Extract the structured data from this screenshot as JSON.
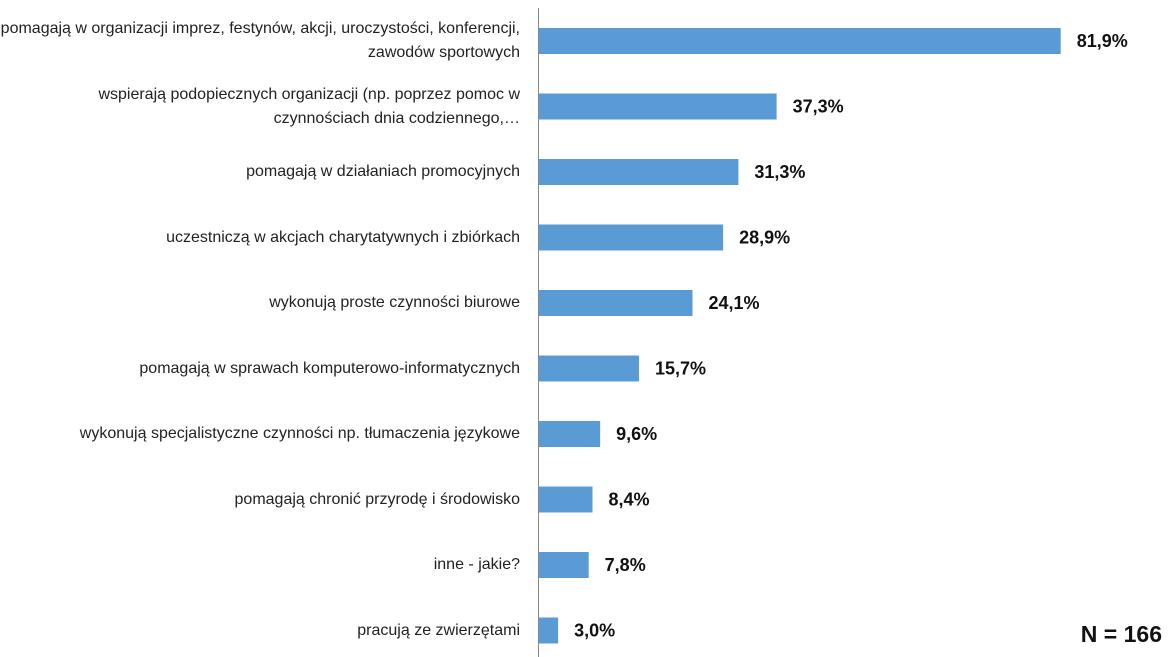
{
  "chart_data": {
    "type": "bar",
    "orientation": "horizontal",
    "categories": [
      "pomagają w organizacji imprez, festynów, akcji, uroczystości, konferencji, zawodów sportowych",
      "wspierają podopiecznych organizacji (np. poprzez pomoc w czynnościach dnia codziennego,…",
      "pomagają w działaniach promocyjnych",
      "uczestniczą w akcjach charytatywnych i zbiórkach",
      "wykonują proste czynności biurowe",
      "pomagają w sprawach komputerowo-informatycznych",
      "wykonują specjalistyczne czynności np. tłumaczenia językowe",
      "pomagają chronić przyrodę i środowisko",
      "inne - jakie?",
      "pracują ze zwierzętami"
    ],
    "values": [
      81.9,
      37.3,
      31.3,
      28.9,
      24.1,
      15.7,
      9.6,
      8.4,
      7.8,
      3.0
    ],
    "value_labels": [
      "81,9%",
      "37,3%",
      "31,3%",
      "28,9%",
      "24,1%",
      "15,7%",
      "9,6%",
      "8,4%",
      "7,8%",
      "3,0%"
    ],
    "color": "#5b9bd5",
    "xlim": [
      0,
      100
    ],
    "annotation": "N = 166"
  }
}
